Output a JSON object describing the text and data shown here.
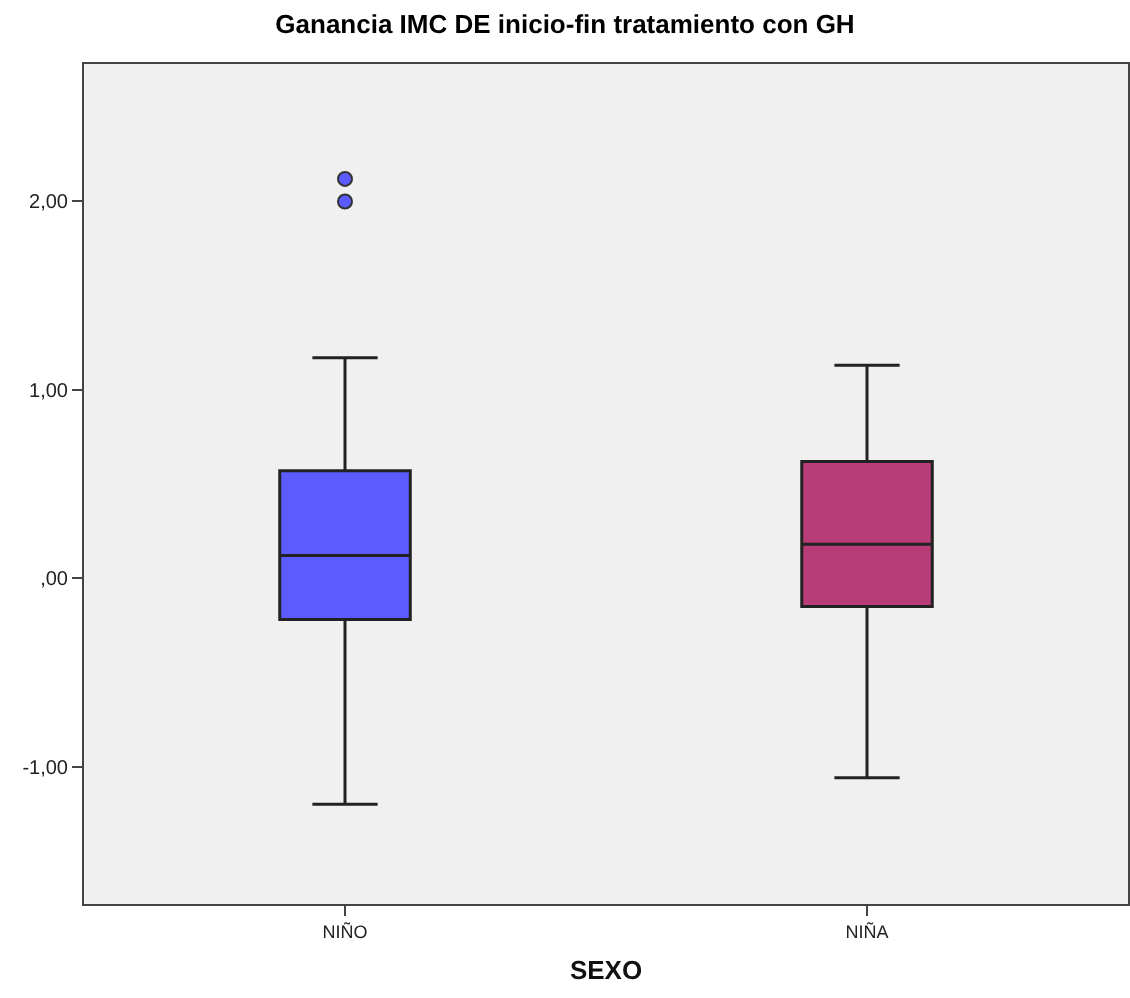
{
  "chart_data": {
    "type": "box",
    "title": "Ganancia IMC DE inicio-fin tratamiento con GH",
    "xlabel": "SEXO",
    "categories": [
      "NIÑO",
      "NIÑA"
    ],
    "colors": [
      "#5b5bff",
      "#b83c78"
    ],
    "boxes": [
      {
        "low": -1.2,
        "q1": -0.22,
        "median": 0.12,
        "q3": 0.57,
        "high": 1.17,
        "outliers": [
          2.12,
          2.0
        ]
      },
      {
        "low": -1.06,
        "q1": -0.15,
        "median": 0.18,
        "q3": 0.62,
        "high": 1.13
      }
    ],
    "ylim": [
      -1.73,
      2.73
    ],
    "yticks": [
      {
        "value": -1,
        "label": "-1,00"
      },
      {
        "value": 0,
        "label": ",00"
      },
      {
        "value": 1,
        "label": "1,00"
      },
      {
        "value": 2,
        "label": "2,00"
      }
    ],
    "grid": false
  }
}
